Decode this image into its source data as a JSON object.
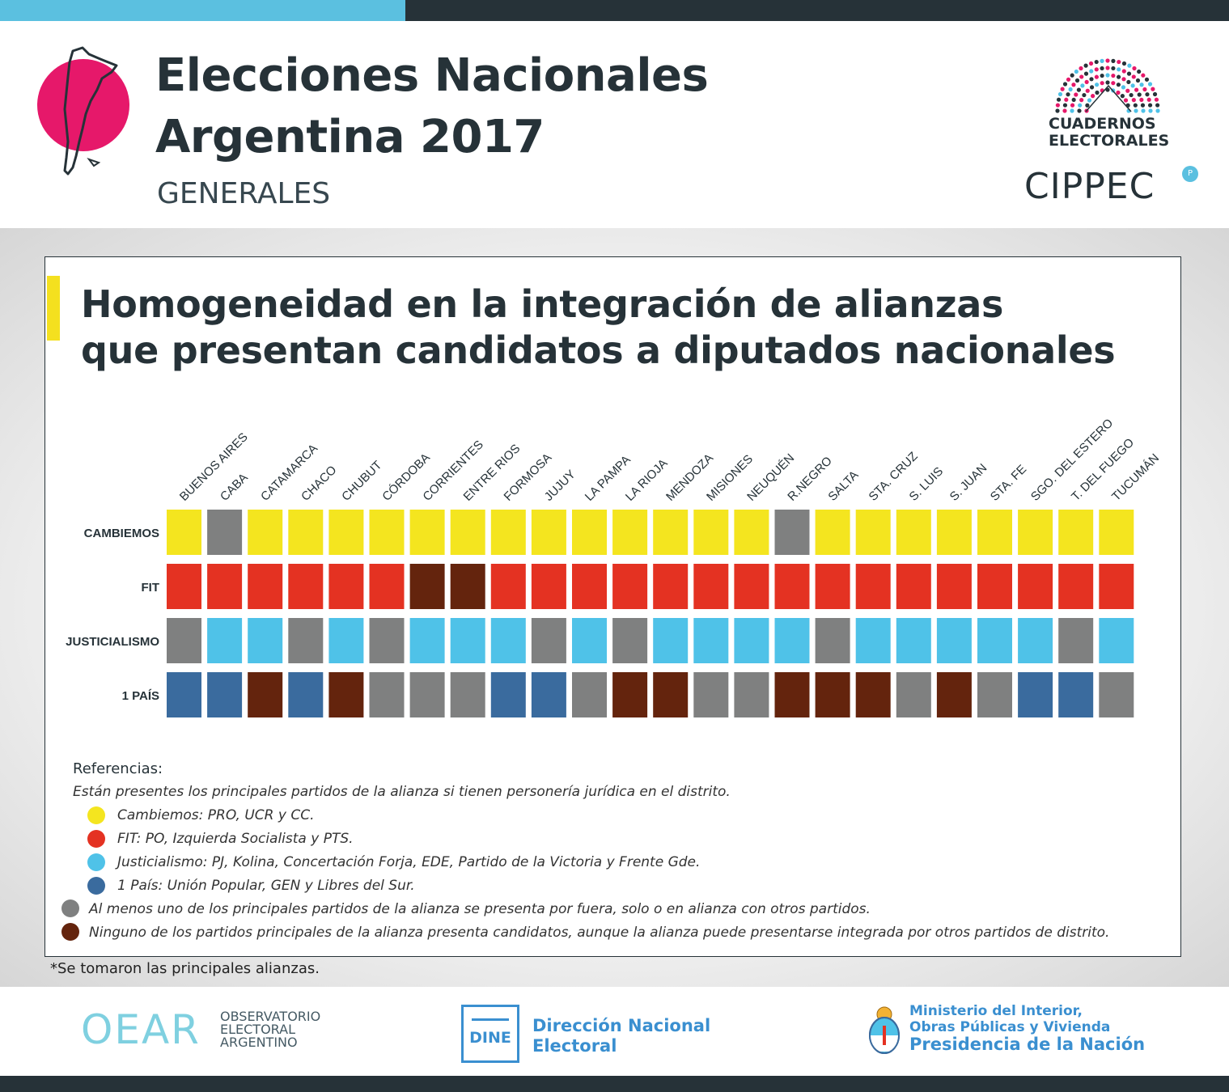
{
  "header": {
    "title_line1": "Elecciones Nacionales",
    "title_line2": "Argentina 2017",
    "subtitle": "GENERALES",
    "cuadernos_line1": "CUADERNOS",
    "cuadernos_line2": "ELECTORALES",
    "cippec": "CIPPEC"
  },
  "colors": {
    "yellow": "#f4e51f",
    "red": "#e43222",
    "light_blue": "#4fc2e8",
    "dark_blue": "#3a6b9e",
    "gray": "#7f8080",
    "brown": "#64240d",
    "magenta": "#e6186a"
  },
  "chart_title_line1": "Homogeneidad en la integración de alianzas",
  "chart_title_line2": "que presentan candidatos a diputados nacionales",
  "chart_data": {
    "type": "heatmap",
    "title": "Homogeneidad en la integración de alianzas que presentan candidatos a diputados nacionales",
    "columns": [
      "BUENOS AIRES",
      "CABA",
      "CATAMARCA",
      "CHACO",
      "CHUBUT",
      "CÓRDOBA",
      "CORRIENTES",
      "ENTRE RIOS",
      "FORMOSA",
      "JUJUY",
      "LA PAMPA",
      "LA RIOJA",
      "MENDOZA",
      "MISIONES",
      "NEUQUÉN",
      "R.NEGRO",
      "SALTA",
      "STA. CRUZ",
      "S. LUIS",
      "S. JUAN",
      "STA. FE",
      "SGO. DEL ESTERO",
      "T. DEL FUEGO",
      "TUCUMÁN"
    ],
    "rows": [
      {
        "label": "CAMBIEMOS",
        "values": [
          "Y",
          "G",
          "Y",
          "Y",
          "Y",
          "Y",
          "Y",
          "Y",
          "Y",
          "Y",
          "Y",
          "Y",
          "Y",
          "Y",
          "Y",
          "G",
          "Y",
          "Y",
          "Y",
          "Y",
          "Y",
          "Y",
          "Y",
          "Y"
        ]
      },
      {
        "label": "FIT",
        "values": [
          "R",
          "R",
          "R",
          "R",
          "R",
          "R",
          "N",
          "N",
          "R",
          "R",
          "R",
          "R",
          "R",
          "R",
          "R",
          "R",
          "R",
          "R",
          "R",
          "R",
          "R",
          "R",
          "R",
          "R"
        ]
      },
      {
        "label": "JUSTICIALISMO",
        "values": [
          "G",
          "L",
          "L",
          "G",
          "L",
          "G",
          "L",
          "L",
          "L",
          "G",
          "L",
          "G",
          "L",
          "L",
          "L",
          "L",
          "G",
          "L",
          "L",
          "L",
          "L",
          "L",
          "G",
          "L"
        ]
      },
      {
        "label": "1 PAÍS",
        "values": [
          "B",
          "B",
          "N",
          "B",
          "N",
          "G",
          "G",
          "G",
          "B",
          "B",
          "G",
          "N",
          "N",
          "G",
          "G",
          "N",
          "N",
          "N",
          "G",
          "N",
          "G",
          "B",
          "B",
          "G"
        ]
      }
    ],
    "legend": {
      "Y": "Cambiemos: PRO, UCR y CC.",
      "R": "FIT: PO, Izquierda Socialista y PTS.",
      "L": "Justicialismo: PJ, Kolina, Concertación Forja, EDE, Partido de la Victoria y Frente Gde.",
      "B": "1 País: Unión Popular, GEN y Libres del Sur.",
      "G": "Al menos uno de los principales partidos de la alianza se presenta por fuera, solo o en alianza con otros partidos.",
      "N": "Ninguno de los partidos principales de la alianza presenta candidatos, aunque la alianza puede presentarse integrada por otros partidos de distrito."
    }
  },
  "references": {
    "title": "Referencias:",
    "note": "Están presentes los principales partidos de la alianza si tienen personería jurídica en el distrito."
  },
  "footnote": "*Se tomaron las principales alianzas.",
  "footer": {
    "oear": "OEAR",
    "oear_line1": "OBSERVATORIO",
    "oear_line2": "ELECTORAL",
    "oear_line3": "ARGENTINO",
    "dine_label": "DINE",
    "dine_line1": "Dirección Nacional",
    "dine_line2": "Electoral",
    "min_line1": "Ministerio del Interior,",
    "min_line2": "Obras Públicas y Vivienda",
    "min_line3": "Presidencia de la Nación"
  }
}
